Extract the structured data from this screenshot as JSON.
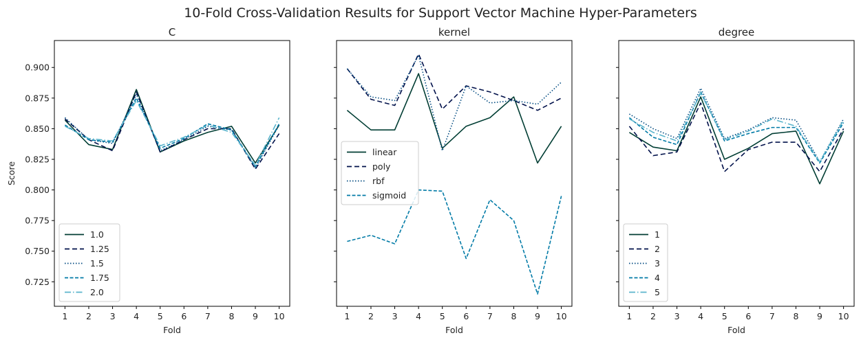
{
  "figure": {
    "title": "10-Fold Cross-Validation Results for Support Vector Machine Hyper-Parameters",
    "shared_y": true
  },
  "styles": {
    "colors": [
      "#003d33",
      "#00104a",
      "#004a80",
      "#007aa6",
      "#5ab4cc"
    ],
    "dashes": [
      "",
      "7,4",
      "1.5,2.5",
      "5,2.5",
      "9,3,1.5,3"
    ]
  },
  "chart_data": [
    {
      "type": "line",
      "title": "C",
      "xlabel": "Fold",
      "ylabel": "Score",
      "x": [
        1,
        2,
        3,
        4,
        5,
        6,
        7,
        8,
        9,
        10
      ],
      "xticks": [
        "1",
        "2",
        "3",
        "4",
        "5",
        "6",
        "7",
        "8",
        "9",
        "10"
      ],
      "ylim": [
        0.705,
        0.922
      ],
      "yticks": [
        "0.725",
        "0.750",
        "0.775",
        "0.800",
        "0.825",
        "0.850",
        "0.875",
        "0.900"
      ],
      "legend_position": "lower-left",
      "series": [
        {
          "name": "1.0",
          "values": [
            0.857,
            0.837,
            0.833,
            0.882,
            0.831,
            0.84,
            0.847,
            0.852,
            0.822,
            0.853
          ]
        },
        {
          "name": "1.25",
          "values": [
            0.858,
            0.841,
            0.832,
            0.88,
            0.831,
            0.841,
            0.85,
            0.85,
            0.817,
            0.846
          ]
        },
        {
          "name": "1.5",
          "values": [
            0.859,
            0.841,
            0.838,
            0.878,
            0.832,
            0.841,
            0.852,
            0.849,
            0.818,
            0.853
          ]
        },
        {
          "name": "1.75",
          "values": [
            0.853,
            0.841,
            0.839,
            0.875,
            0.834,
            0.842,
            0.854,
            0.849,
            0.819,
            0.854
          ]
        },
        {
          "name": "2.0",
          "values": [
            0.852,
            0.842,
            0.84,
            0.873,
            0.836,
            0.843,
            0.853,
            0.847,
            0.82,
            0.859
          ]
        }
      ]
    },
    {
      "type": "line",
      "title": "kernel",
      "xlabel": "Fold",
      "ylabel": "",
      "x": [
        1,
        2,
        3,
        4,
        5,
        6,
        7,
        8,
        9,
        10
      ],
      "xticks": [
        "1",
        "2",
        "3",
        "4",
        "5",
        "6",
        "7",
        "8",
        "9",
        "10"
      ],
      "ylim": [
        0.705,
        0.922
      ],
      "yticks": [],
      "legend_position": "center-left",
      "series": [
        {
          "name": "linear",
          "values": [
            0.865,
            0.849,
            0.849,
            0.895,
            0.834,
            0.852,
            0.859,
            0.876,
            0.822,
            0.852
          ]
        },
        {
          "name": "poly",
          "values": [
            0.899,
            0.874,
            0.869,
            0.911,
            0.866,
            0.885,
            0.88,
            0.873,
            0.865,
            0.875
          ]
        },
        {
          "name": "rbf",
          "values": [
            0.899,
            0.876,
            0.873,
            0.91,
            0.832,
            0.885,
            0.871,
            0.873,
            0.87,
            0.888
          ]
        },
        {
          "name": "sigmoid",
          "values": [
            0.758,
            0.763,
            0.756,
            0.8,
            0.799,
            0.744,
            0.792,
            0.775,
            0.715,
            0.795
          ]
        }
      ]
    },
    {
      "type": "line",
      "title": "degree",
      "xlabel": "Fold",
      "ylabel": "",
      "x": [
        1,
        2,
        3,
        4,
        5,
        6,
        7,
        8,
        9,
        10
      ],
      "xticks": [
        "1",
        "2",
        "3",
        "4",
        "5",
        "6",
        "7",
        "8",
        "9",
        "10"
      ],
      "ylim": [
        0.705,
        0.922
      ],
      "yticks": [],
      "legend_position": "lower-left",
      "series": [
        {
          "name": "1",
          "values": [
            0.847,
            0.835,
            0.832,
            0.876,
            0.825,
            0.834,
            0.846,
            0.848,
            0.805,
            0.848
          ]
        },
        {
          "name": "2",
          "values": [
            0.852,
            0.828,
            0.831,
            0.871,
            0.815,
            0.833,
            0.839,
            0.839,
            0.815,
            0.85
          ]
        },
        {
          "name": "3",
          "values": [
            0.862,
            0.85,
            0.842,
            0.883,
            0.842,
            0.849,
            0.859,
            0.857,
            0.823,
            0.858
          ]
        },
        {
          "name": "4",
          "values": [
            0.859,
            0.843,
            0.837,
            0.88,
            0.84,
            0.846,
            0.851,
            0.851,
            0.822,
            0.855
          ]
        },
        {
          "name": "5",
          "values": [
            0.858,
            0.847,
            0.84,
            0.879,
            0.841,
            0.848,
            0.858,
            0.852,
            0.823,
            0.857
          ]
        }
      ]
    }
  ]
}
